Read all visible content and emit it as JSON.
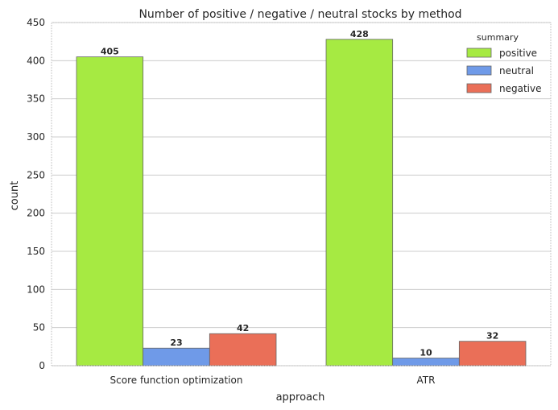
{
  "chart_data": {
    "type": "bar",
    "title": "Number of positive / negative / neutral stocks by method",
    "xlabel": "approach",
    "ylabel": "count",
    "ylim": [
      0,
      450
    ],
    "yticks": [
      "0",
      "50",
      "100",
      "150",
      "200",
      "250",
      "300",
      "350",
      "400",
      "450"
    ],
    "categories": [
      "Score function optimization",
      "ATR"
    ],
    "series": [
      {
        "name": "positive",
        "color": "#a6ea42",
        "values": [
          405,
          428
        ],
        "labels": [
          "405",
          "428"
        ]
      },
      {
        "name": "neutral",
        "color": "#6f9ae8",
        "values": [
          23,
          10
        ],
        "labels": [
          "23",
          "10"
        ]
      },
      {
        "name": "negative",
        "color": "#ea6f58",
        "values": [
          42,
          32
        ],
        "labels": [
          "42",
          "32"
        ]
      }
    ],
    "legend": {
      "title": "summary",
      "placement": "top-right"
    },
    "grid": true
  }
}
